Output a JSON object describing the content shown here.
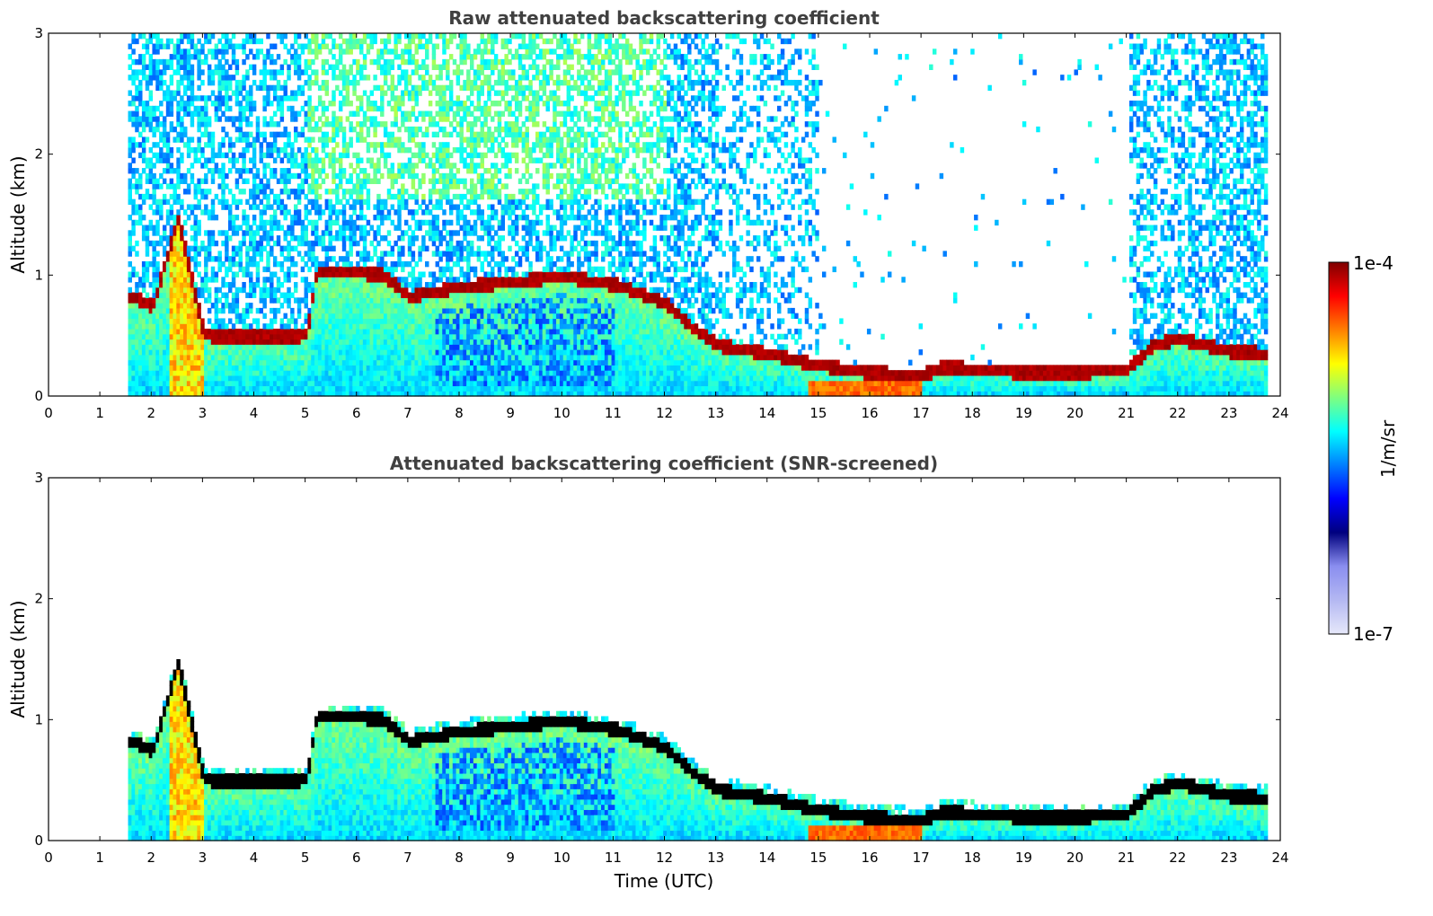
{
  "chart_data": [
    {
      "type": "heatmap",
      "title": "Raw attenuated backscattering coefficient",
      "xlabel": "",
      "ylabel": "Altitude (km)",
      "xlim": [
        0,
        24
      ],
      "ylim": [
        0,
        3
      ],
      "x_ticks": [
        "0",
        "1",
        "2",
        "3",
        "4",
        "5",
        "6",
        "7",
        "8",
        "9",
        "10",
        "11",
        "12",
        "13",
        "14",
        "15",
        "16",
        "17",
        "18",
        "19",
        "20",
        "21",
        "22",
        "23",
        "24"
      ],
      "y_ticks": [
        "0",
        "1",
        "2",
        "3"
      ],
      "data_time_range": [
        1.55,
        23.75
      ],
      "cloud_layer_height_km": [
        {
          "t": 1.6,
          "z": 0.8
        },
        {
          "t": 2.0,
          "z": 0.72
        },
        {
          "t": 2.5,
          "z": 1.45
        },
        {
          "t": 3.0,
          "z": 0.48
        },
        {
          "t": 4.0,
          "z": 0.47
        },
        {
          "t": 5.0,
          "z": 0.48
        },
        {
          "t": 5.2,
          "z": 1.0
        },
        {
          "t": 6.0,
          "z": 1.0
        },
        {
          "t": 6.5,
          "z": 0.98
        },
        {
          "t": 7.0,
          "z": 0.8
        },
        {
          "t": 8.0,
          "z": 0.88
        },
        {
          "t": 9.0,
          "z": 0.92
        },
        {
          "t": 10.0,
          "z": 0.97
        },
        {
          "t": 11.0,
          "z": 0.9
        },
        {
          "t": 12.0,
          "z": 0.75
        },
        {
          "t": 12.5,
          "z": 0.55
        },
        {
          "t": 13.0,
          "z": 0.4
        },
        {
          "t": 14.0,
          "z": 0.33
        },
        {
          "t": 15.0,
          "z": 0.23
        },
        {
          "t": 16.0,
          "z": 0.17
        },
        {
          "t": 17.0,
          "z": 0.15
        },
        {
          "t": 17.4,
          "z": 0.22
        },
        {
          "t": 18.0,
          "z": 0.2
        },
        {
          "t": 19.0,
          "z": 0.17
        },
        {
          "t": 20.0,
          "z": 0.17
        },
        {
          "t": 21.0,
          "z": 0.2
        },
        {
          "t": 21.5,
          "z": 0.4
        },
        {
          "t": 22.0,
          "z": 0.45
        },
        {
          "t": 23.0,
          "z": 0.35
        },
        {
          "t": 23.7,
          "z": 0.33
        }
      ],
      "colorbar": {
        "label": "1/m/sr",
        "min_label": "1e-7",
        "max_label": "1e-4"
      }
    },
    {
      "type": "heatmap",
      "title": "Attenuated backscattering coefficient (SNR-screened)",
      "xlabel": "Time (UTC)",
      "ylabel": "Altitude (km)",
      "xlim": [
        0,
        24
      ],
      "ylim": [
        0,
        3
      ],
      "x_ticks": [
        "0",
        "1",
        "2",
        "3",
        "4",
        "5",
        "6",
        "7",
        "8",
        "9",
        "10",
        "11",
        "12",
        "13",
        "14",
        "15",
        "16",
        "17",
        "18",
        "19",
        "20",
        "21",
        "22",
        "23",
        "24"
      ],
      "y_ticks": [
        "0",
        "1",
        "2",
        "3"
      ],
      "data_time_range": [
        1.55,
        23.75
      ],
      "colorbar": {
        "label": "1/m/sr",
        "min_label": "1e-7",
        "max_label": "1e-4"
      }
    }
  ],
  "colors": {
    "jet": [
      "#00007f",
      "#0000ff",
      "#007fff",
      "#00ffff",
      "#7fff7f",
      "#ffff00",
      "#ff7f00",
      "#ff0000",
      "#7f0000"
    ],
    "low_end": [
      "#e6e8fa",
      "#b4b8f2",
      "#8a8ef0"
    ],
    "title_color": "#404040"
  }
}
